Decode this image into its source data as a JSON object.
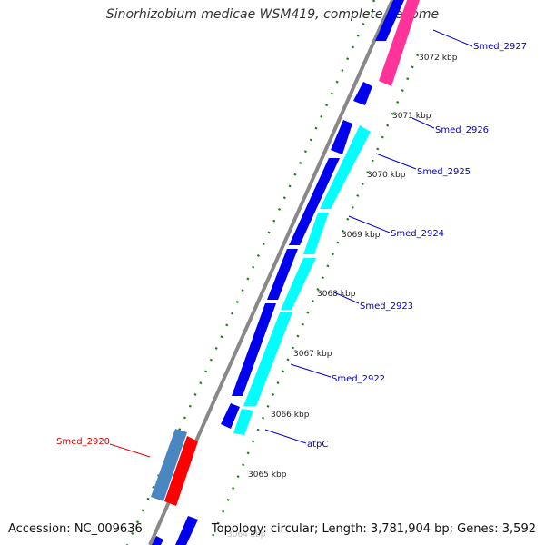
{
  "title": "Sinorhizobium medicae WSM419, complete genome",
  "footer": {
    "accession": "Accession: NC_009636",
    "summary": "Topology: circular; Length: 3,781,904 bp; Genes: 3,592"
  },
  "colors": {
    "forward_cds": "#0000ee",
    "reverse_cds": "#00ffff",
    "rna_forward": "#ff3399",
    "highlight_gene": "#ff0000",
    "highlight_related": "#4a86c0",
    "backbone": "#888888",
    "gc_ticks": "#1a7a1a",
    "label_normal": "#0000cc",
    "label_highlight": "#dd0000"
  },
  "axis": {
    "unit": "kbp",
    "ticks": [
      3072,
      3071,
      3070,
      3069,
      3068,
      3067,
      3066,
      3065,
      3064
    ]
  },
  "genes": [
    {
      "name": "Smed_2927",
      "strand": "reverse",
      "color": "rna_forward"
    },
    {
      "name": "Smed_2926",
      "strand": "forward",
      "color": "forward_cds"
    },
    {
      "name": "Smed_2925",
      "strand": "reverse",
      "color": "reverse_cds"
    },
    {
      "name": "Smed_2924",
      "strand": "reverse",
      "color": "reverse_cds"
    },
    {
      "name": "Smed_2923",
      "strand": "reverse",
      "color": "reverse_cds"
    },
    {
      "name": "Smed_2922",
      "strand": "reverse",
      "color": "reverse_cds"
    },
    {
      "name": "atpC",
      "strand": "reverse",
      "color": "reverse_cds"
    },
    {
      "name": "Smed_2920",
      "strand": "outer",
      "color": "highlight_gene",
      "highlighted": true
    }
  ]
}
